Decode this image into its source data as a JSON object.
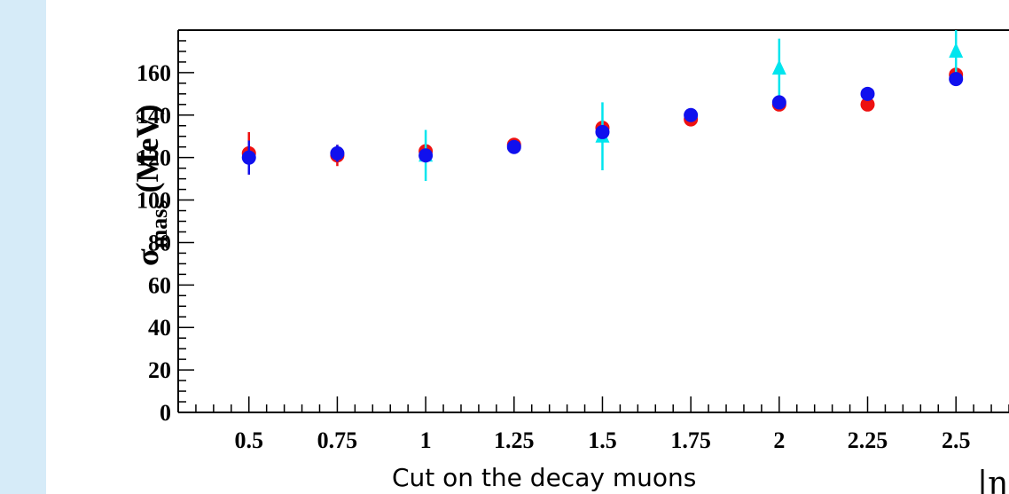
{
  "chart_data": {
    "type": "scatter",
    "ylabel_main": "σ",
    "ylabel_sub": "mass",
    "ylabel_unit": "(MeV)",
    "xlabel": "Cut on the decay muons",
    "xlabel_suffix": "|η",
    "xlim": [
      0.3,
      2.65
    ],
    "ylim": [
      0,
      180
    ],
    "x_ticks": [
      0.5,
      0.75,
      1,
      1.25,
      1.5,
      1.75,
      2,
      2.25,
      2.5
    ],
    "x_tick_labels": [
      "0.5",
      "0.75",
      "1",
      "1.25",
      "1.5",
      "1.75",
      "2",
      "2.25",
      "2.5"
    ],
    "y_ticks": [
      0,
      20,
      40,
      60,
      80,
      100,
      120,
      140,
      160
    ],
    "y_tick_labels": [
      "0",
      "20",
      "40",
      "60",
      "80",
      "100",
      "120",
      "140",
      "160"
    ],
    "grid": false,
    "series": [
      {
        "marker": "circle",
        "color": "#ee1111",
        "points": [
          {
            "x": 0.5,
            "y": 122,
            "err": 10
          },
          {
            "x": 0.75,
            "y": 121,
            "err": 5
          },
          {
            "x": 1,
            "y": 123,
            "err": 3
          },
          {
            "x": 1.25,
            "y": 126,
            "err": 3
          },
          {
            "x": 1.5,
            "y": 134,
            "err": 3
          },
          {
            "x": 1.75,
            "y": 138,
            "err": 2
          },
          {
            "x": 2,
            "y": 145,
            "err": 2
          },
          {
            "x": 2.25,
            "y": 145,
            "err": 2
          },
          {
            "x": 2.5,
            "y": 159,
            "err": 2
          }
        ]
      },
      {
        "marker": "triangle",
        "color": "#00e5ee",
        "points": [
          {
            "x": 1,
            "y": 121,
            "err": 12
          },
          {
            "x": 1.5,
            "y": 130,
            "err": 16
          },
          {
            "x": 2,
            "y": 162,
            "err": 14
          },
          {
            "x": 2.5,
            "y": 170,
            "err": 10
          }
        ]
      },
      {
        "marker": "circle",
        "color": "#1010ee",
        "points": [
          {
            "x": 0.5,
            "y": 120,
            "err": 8
          },
          {
            "x": 0.75,
            "y": 122,
            "err": 4
          },
          {
            "x": 1,
            "y": 121,
            "err": 3
          },
          {
            "x": 1.25,
            "y": 125,
            "err": 3
          },
          {
            "x": 1.5,
            "y": 132,
            "err": 3
          },
          {
            "x": 1.75,
            "y": 140,
            "err": 2
          },
          {
            "x": 2,
            "y": 146,
            "err": 2
          },
          {
            "x": 2.25,
            "y": 150,
            "err": 2
          },
          {
            "x": 2.5,
            "y": 157,
            "err": 2
          }
        ]
      }
    ]
  }
}
